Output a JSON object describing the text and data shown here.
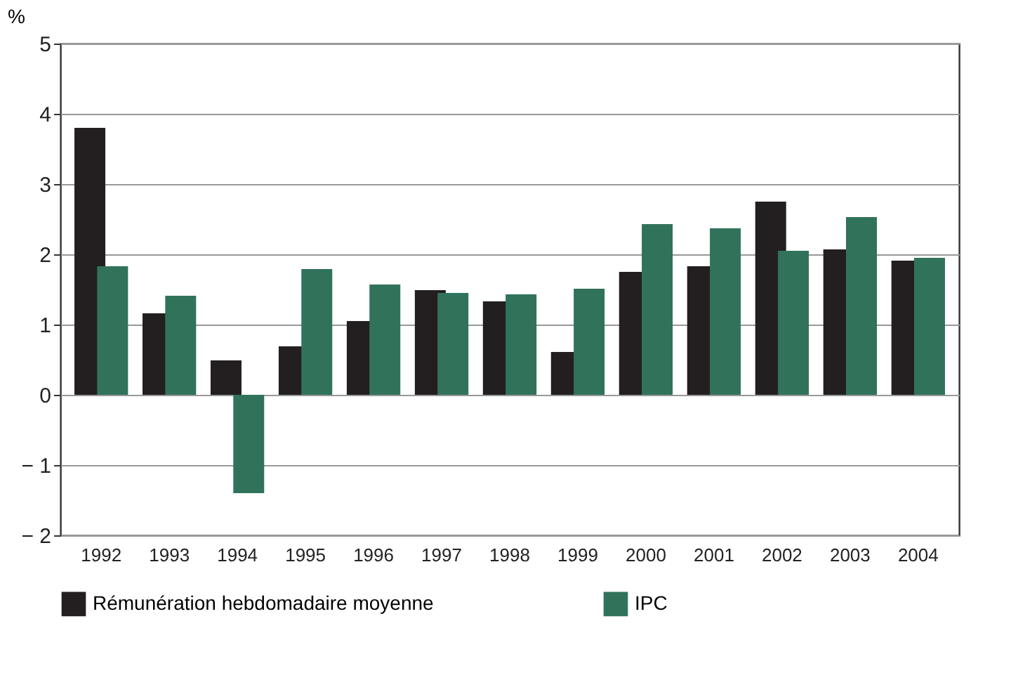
{
  "chart_data": {
    "type": "bar",
    "ylabel": "%",
    "categories": [
      "1992",
      "1993",
      "1994",
      "1995",
      "1996",
      "1997",
      "1998",
      "1999",
      "2000",
      "2001",
      "2002",
      "2003",
      "2004"
    ],
    "series": [
      {
        "name": "Rémunération hebdomadaire moyenne",
        "color": "#231f20",
        "values": [
          3.8,
          1.16,
          0.49,
          0.69,
          1.05,
          1.49,
          1.33,
          0.61,
          1.75,
          1.83,
          2.75,
          2.07,
          1.91
        ]
      },
      {
        "name": "IPC",
        "color": "#31735a",
        "values": [
          1.83,
          1.41,
          -1.4,
          1.79,
          1.57,
          1.45,
          1.43,
          1.51,
          2.43,
          2.37,
          2.05,
          2.53,
          1.95
        ]
      }
    ],
    "ylim": [
      -2,
      5
    ],
    "yticks": [
      {
        "value": -2,
        "label": "− 2"
      },
      {
        "value": -1,
        "label": "− 1"
      },
      0,
      1,
      2,
      3,
      4,
      5
    ],
    "grid": "y",
    "legend": "bottom"
  }
}
